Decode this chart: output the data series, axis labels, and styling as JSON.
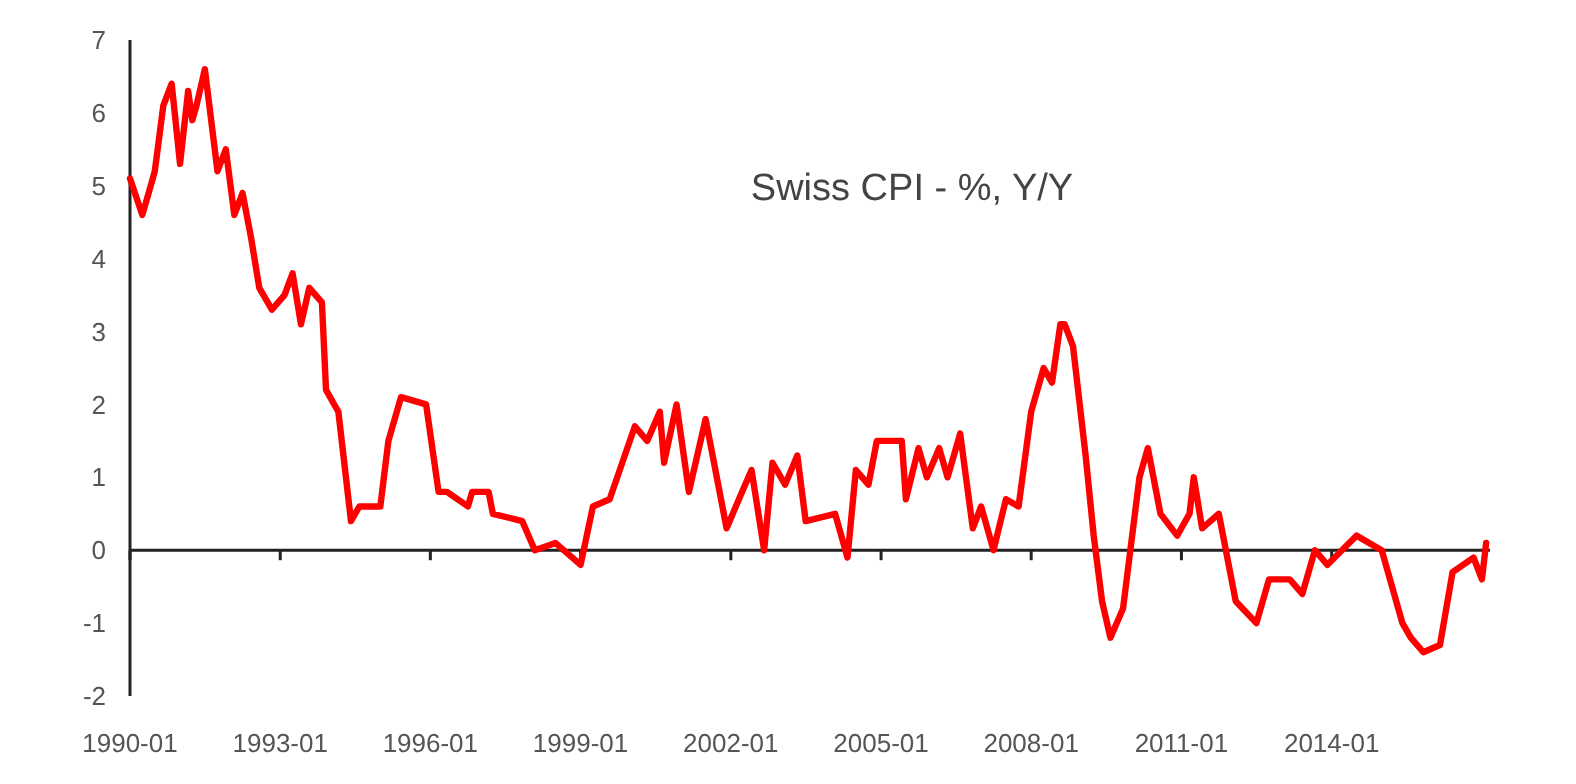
{
  "chart_data": {
    "type": "line",
    "title": "Swiss CPI - %, Y/Y",
    "x": [
      "1990-01",
      "1990-04",
      "1990-06",
      "1990-07",
      "1990-09",
      "1990-11",
      "1991-01",
      "1991-03",
      "1991-04",
      "1991-05",
      "1991-07",
      "1991-10",
      "1991-12",
      "1992-02",
      "1992-04",
      "1992-06",
      "1992-08",
      "1992-11",
      "1993-02",
      "1993-04",
      "1993-06",
      "1993-08",
      "1993-11",
      "1993-12",
      "1994-03",
      "1994-06",
      "1994-08",
      "1995-01",
      "1995-03",
      "1995-06",
      "1995-12",
      "1996-03",
      "1996-05",
      "1996-10",
      "1996-11",
      "1997-03",
      "1997-04",
      "1997-11",
      "1998-02",
      "1998-07",
      "1999-01",
      "1999-04",
      "1999-08",
      "1999-11",
      "2000-02",
      "2000-05",
      "2000-08",
      "2000-09",
      "2000-12",
      "2001-03",
      "2001-07",
      "2001-12",
      "2002-03",
      "2002-06",
      "2002-09",
      "2002-11",
      "2003-02",
      "2003-05",
      "2003-07",
      "2004-02",
      "2004-05",
      "2004-07",
      "2004-10",
      "2004-12",
      "2005-06",
      "2005-07",
      "2005-10",
      "2005-12",
      "2006-03",
      "2006-05",
      "2006-08",
      "2006-11",
      "2007-01",
      "2007-04",
      "2007-07",
      "2007-10",
      "2008-01",
      "2008-04",
      "2008-06",
      "2008-08",
      "2008-09",
      "2008-11",
      "2009-02",
      "2009-04",
      "2009-06",
      "2009-08",
      "2009-11",
      "2010-03",
      "2010-05",
      "2010-08",
      "2010-12",
      "2011-03",
      "2011-04",
      "2011-06",
      "2011-10",
      "2012-02",
      "2012-07",
      "2012-10",
      "2013-03",
      "2013-06",
      "2013-09",
      "2013-12",
      "2014-07",
      "2015-01",
      "2015-06",
      "2015-08",
      "2015-11",
      "2016-03",
      "2016-06",
      "2016-11",
      "2017-01",
      "2017-02"
    ],
    "series": [
      {
        "color": "#ff0000",
        "values": [
          5.1,
          4.6,
          5.0,
          5.2,
          6.1,
          6.4,
          5.3,
          6.3,
          5.9,
          6.1,
          6.6,
          5.2,
          5.5,
          4.6,
          4.9,
          4.3,
          3.6,
          3.3,
          3.5,
          3.8,
          3.1,
          3.6,
          3.4,
          2.2,
          1.9,
          0.4,
          0.6,
          0.6,
          1.5,
          2.1,
          2.0,
          0.8,
          0.8,
          0.6,
          0.8,
          0.8,
          0.5,
          0.4,
          0.0,
          0.1,
          -0.2,
          0.6,
          0.7,
          1.2,
          1.7,
          1.5,
          1.9,
          1.2,
          2.0,
          0.8,
          1.8,
          0.3,
          0.7,
          1.1,
          0.0,
          1.2,
          0.9,
          1.3,
          0.4,
          0.5,
          -0.1,
          1.1,
          0.9,
          1.5,
          1.5,
          0.7,
          1.4,
          1.0,
          1.4,
          1.0,
          1.6,
          0.3,
          0.6,
          0.0,
          0.7,
          0.6,
          1.9,
          2.5,
          2.3,
          3.1,
          3.1,
          2.8,
          1.3,
          0.2,
          -0.7,
          -1.2,
          -0.8,
          1.0,
          1.4,
          0.5,
          0.2,
          0.5,
          1.0,
          0.3,
          0.5,
          -0.7,
          -1.0,
          -0.4,
          -0.4,
          -0.6,
          0.0,
          -0.2,
          0.2,
          0.0,
          -1.0,
          -1.2,
          -1.4,
          -1.3,
          -0.3,
          -0.1,
          -0.4,
          0.1
        ]
      }
    ],
    "xlim": [
      "1990-01",
      "2017-03"
    ],
    "xticks": [
      "1990-01",
      "1993-01",
      "1996-01",
      "1999-01",
      "2002-01",
      "2005-01",
      "2008-01",
      "2011-01",
      "2014-01"
    ],
    "ylim": [
      -2,
      7
    ],
    "yticks": [
      -2,
      -1,
      0,
      1,
      2,
      3,
      4,
      5,
      6,
      7
    ],
    "marker": "none",
    "line_style": "solid"
  }
}
